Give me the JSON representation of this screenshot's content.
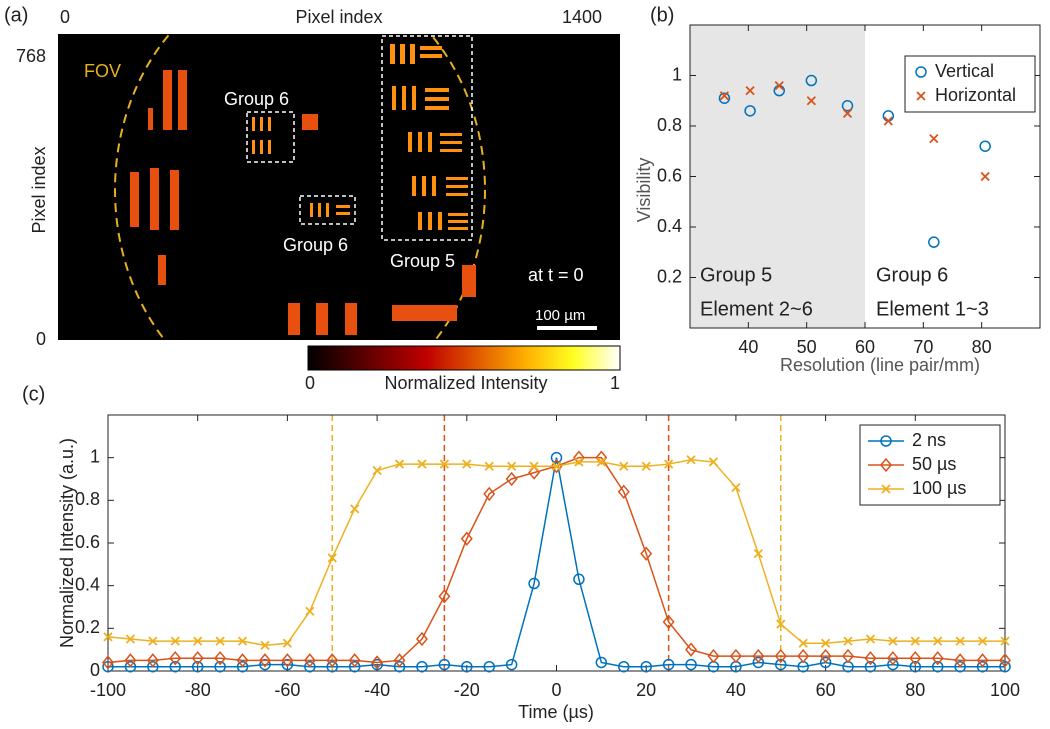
{
  "chart_data": [
    {
      "type": "image",
      "label": "(a)",
      "xlabel": "Pixel index",
      "ylabel": "Pixel index",
      "xlim": [
        0,
        1400
      ],
      "xticks": [
        0,
        1400
      ],
      "ylim": [
        0,
        768
      ],
      "yticks": [
        0,
        768
      ],
      "annotations": [
        "FOV",
        "Group 6",
        "Group 6",
        "Group 5",
        "at t = 0",
        "100 µm"
      ],
      "colorbar": {
        "label": "Normalized Intensity",
        "ticks": [
          0,
          1
        ]
      }
    },
    {
      "type": "scatter",
      "label": "(b)",
      "xlabel": "Resolution (line pair/mm)",
      "ylabel": "Visibility",
      "xlim": [
        30,
        90
      ],
      "xticks": [
        40,
        50,
        60,
        70,
        80
      ],
      "ylim": [
        0,
        1.2
      ],
      "yticks": [
        0.2,
        0.4,
        0.6,
        0.8,
        1
      ],
      "shaded_region": [
        30,
        60
      ],
      "annotations": [
        "Group 5",
        "Element 2~6",
        "Group 6",
        "Element 1~3"
      ],
      "x": [
        35.9,
        40.3,
        45.3,
        50.8,
        57,
        64,
        71.8,
        80.6
      ],
      "legend": "upper right",
      "series": [
        {
          "name": "Vertical",
          "color": "#0072bd",
          "marker": "circle",
          "values": [
            0.91,
            0.86,
            0.94,
            0.98,
            0.88,
            0.84,
            0.34,
            0.72
          ]
        },
        {
          "name": "Horizontal",
          "color": "#d95319",
          "marker": "x",
          "values": [
            0.92,
            0.94,
            0.96,
            0.9,
            0.85,
            0.82,
            0.75,
            0.6
          ]
        }
      ]
    },
    {
      "type": "line",
      "label": "(c)",
      "xlabel": "Time (µs)",
      "ylabel": "Normalized Intensity (a.u.)",
      "xlim": [
        -100,
        100
      ],
      "xticks": [
        -100,
        -80,
        -60,
        -40,
        -20,
        0,
        20,
        40,
        60,
        80,
        100
      ],
      "ylim": [
        0,
        1.2
      ],
      "yticks": [
        0,
        0.2,
        0.4,
        0.6,
        0.8,
        1
      ],
      "legend": "upper right",
      "vlines": [
        {
          "x": -50,
          "color": "#edb120"
        },
        {
          "x": -25,
          "color": "#d95319"
        },
        {
          "x": 25,
          "color": "#d95319"
        },
        {
          "x": 50,
          "color": "#edb120"
        }
      ],
      "x": [
        -100,
        -95,
        -90,
        -85,
        -80,
        -75,
        -70,
        -65,
        -60,
        -55,
        -50,
        -45,
        -40,
        -35,
        -30,
        -25,
        -20,
        -15,
        -10,
        -5,
        0,
        5,
        10,
        15,
        20,
        25,
        30,
        35,
        40,
        45,
        50,
        55,
        60,
        65,
        70,
        75,
        80,
        85,
        90,
        95,
        100
      ],
      "series": [
        {
          "name": "2 ns",
          "color": "#0072bd",
          "marker": "circle",
          "values": [
            0.02,
            0.02,
            0.02,
            0.02,
            0.02,
            0.02,
            0.02,
            0.03,
            0.03,
            0.02,
            0.02,
            0.02,
            0.03,
            0.02,
            0.02,
            0.03,
            0.02,
            0.02,
            0.03,
            0.41,
            1.0,
            0.43,
            0.04,
            0.02,
            0.02,
            0.03,
            0.03,
            0.02,
            0.02,
            0.04,
            0.03,
            0.02,
            0.04,
            0.02,
            0.02,
            0.03,
            0.02,
            0.02,
            0.02,
            0.02,
            0.02
          ]
        },
        {
          "name": "50 µs",
          "color": "#d95319",
          "marker": "diamond",
          "values": [
            0.04,
            0.05,
            0.05,
            0.06,
            0.06,
            0.06,
            0.05,
            0.05,
            0.05,
            0.05,
            0.05,
            0.05,
            0.04,
            0.05,
            0.15,
            0.35,
            0.62,
            0.83,
            0.9,
            0.93,
            0.96,
            1.0,
            1.0,
            0.84,
            0.55,
            0.23,
            0.1,
            0.07,
            0.07,
            0.07,
            0.07,
            0.07,
            0.07,
            0.07,
            0.06,
            0.06,
            0.06,
            0.06,
            0.05,
            0.05,
            0.05
          ]
        },
        {
          "name": "100 µs",
          "color": "#edb120",
          "marker": "x",
          "values": [
            0.16,
            0.15,
            0.14,
            0.14,
            0.14,
            0.14,
            0.14,
            0.12,
            0.13,
            0.28,
            0.53,
            0.76,
            0.94,
            0.97,
            0.97,
            0.97,
            0.97,
            0.96,
            0.96,
            0.96,
            0.96,
            0.98,
            0.98,
            0.96,
            0.96,
            0.97,
            0.99,
            0.98,
            0.86,
            0.55,
            0.22,
            0.13,
            0.13,
            0.14,
            0.15,
            0.14,
            0.14,
            0.14,
            0.14,
            0.14,
            0.14
          ]
        }
      ]
    }
  ]
}
